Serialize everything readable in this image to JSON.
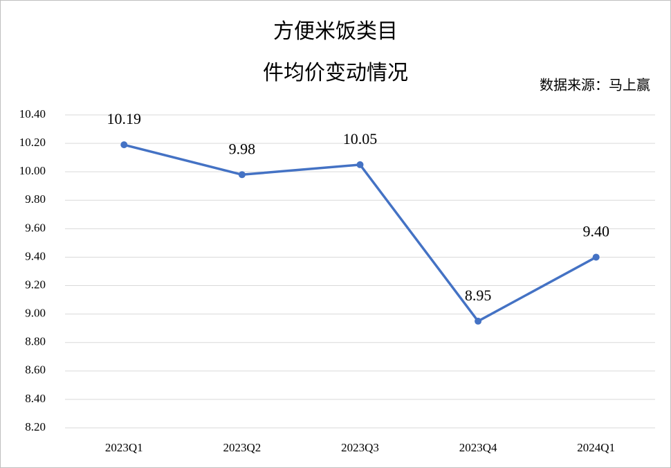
{
  "chart_data": {
    "type": "line",
    "title": [
      "方便米饭类目",
      "件均价变动情况"
    ],
    "annotation": "数据来源：马上赢",
    "categories": [
      "2023Q1",
      "2023Q2",
      "2023Q3",
      "2023Q4",
      "2024Q1"
    ],
    "series": [
      {
        "name": "件均价",
        "color": "#4472c4",
        "values": [
          10.19,
          9.98,
          10.05,
          8.95,
          9.4
        ],
        "value_labels": [
          "10.19",
          "9.98",
          "10.05",
          "8.95",
          "9.40"
        ]
      }
    ],
    "ylim": [
      8.2,
      10.4
    ],
    "yticks": [
      {
        "value": 8.2,
        "label": "8.20"
      },
      {
        "value": 8.4,
        "label": "8.40"
      },
      {
        "value": 8.6,
        "label": "8.60"
      },
      {
        "value": 8.8,
        "label": "8.80"
      },
      {
        "value": 9.0,
        "label": "9.00"
      },
      {
        "value": 9.2,
        "label": "9.20"
      },
      {
        "value": 9.4,
        "label": "9.40"
      },
      {
        "value": 9.6,
        "label": "9.60"
      },
      {
        "value": 9.8,
        "label": "9.80"
      },
      {
        "value": 10.0,
        "label": "10.00"
      },
      {
        "value": 10.2,
        "label": "10.20"
      },
      {
        "value": 10.4,
        "label": "10.40"
      }
    ],
    "grid": true
  }
}
